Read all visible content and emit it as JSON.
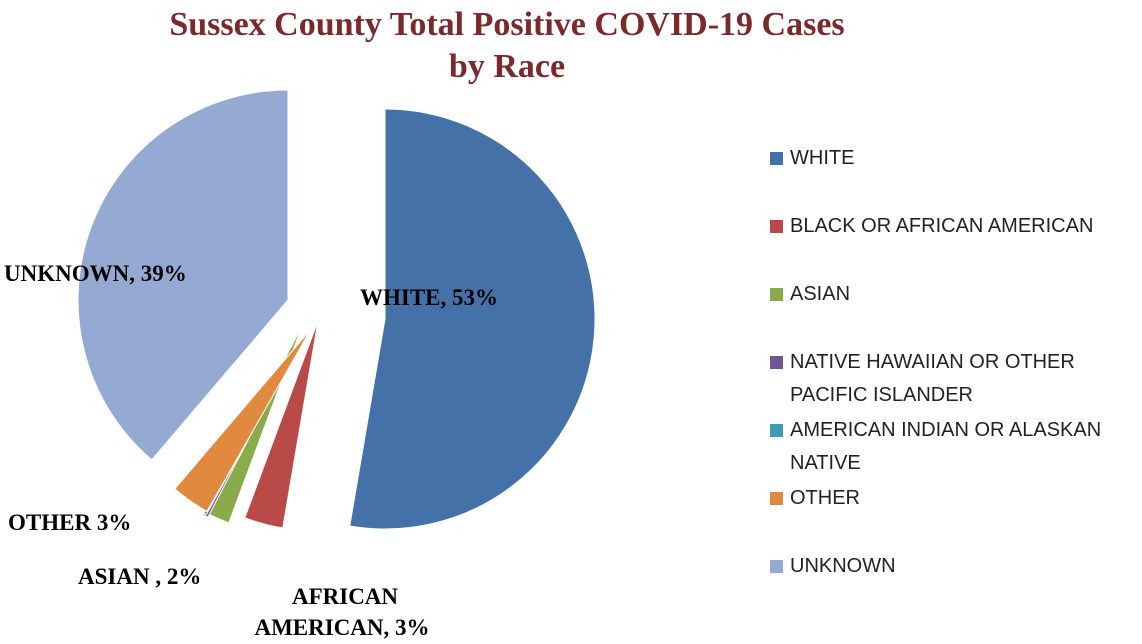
{
  "chart_data": {
    "type": "pie",
    "title": "Sussex County Total Positive COVID-19 Cases",
    "subtitle": "by Race",
    "exploded": true,
    "legend_position": "right",
    "slices": [
      {
        "name": "WHITE",
        "value": 53,
        "label": "WHITE, 53%",
        "color": "#4472a8"
      },
      {
        "name": "BLACK OR AFRICAN AMERICAN",
        "value": 3,
        "label": "AFRICAN AMERICAN, 3%",
        "color": "#b94a48"
      },
      {
        "name": "ASIAN",
        "value": 2,
        "label": "ASIAN , 2%",
        "color": "#8aab4a"
      },
      {
        "name": "NATIVE HAWAIIAN OR OTHER PACIFIC ISLANDER",
        "value": 0.4,
        "label": "",
        "color": "#6f5694"
      },
      {
        "name": "AMERICAN INDIAN OR ALASKAN NATIVE",
        "value": 0.2,
        "label": "",
        "color": "#3c9cb3"
      },
      {
        "name": "OTHER",
        "value": 3,
        "label": "OTHER 3%",
        "color": "#e1893f"
      },
      {
        "name": "UNKNOWN",
        "value": 39,
        "label": "UNKNOWN, 39%",
        "color": "#94aad3"
      }
    ]
  }
}
